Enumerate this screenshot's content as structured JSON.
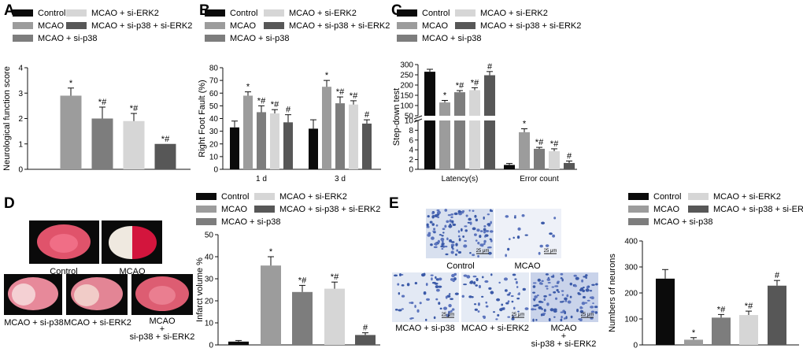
{
  "figure": {
    "panel_letters": [
      "A",
      "B",
      "C",
      "D",
      "E"
    ],
    "groups": [
      "Control",
      "MCAO",
      "MCAO + si-p38",
      "MCAO + si-ERK2",
      "MCAO + si-p38 + si-ERK2"
    ],
    "colors": {
      "control": "#0b0b0b",
      "mcao": "#9c9c9c",
      "si_p38": "#7d7d7d",
      "si_erk2": "#d6d6d6",
      "si_p38_erk2": "#575757"
    },
    "legend_layout": [
      [
        {
          "group": 0,
          "color": "control"
        },
        {
          "group": 3,
          "color": "si_erk2"
        }
      ],
      [
        {
          "group": 1,
          "color": "mcao"
        },
        {
          "group": 4,
          "color": "si_p38_erk2"
        }
      ],
      [
        {
          "group": 2,
          "color": "si_p38"
        }
      ]
    ]
  },
  "chart_data": [
    {
      "panel": "A",
      "type": "bar",
      "title": "",
      "xlabel": "",
      "ylabel": "Neurological function score",
      "ylim": [
        0,
        4
      ],
      "yticks": [
        0,
        1,
        2,
        3,
        4
      ],
      "categories": [
        "MCAO",
        "MCAO + si-p38",
        "MCAO + si-ERK2",
        "MCAO + si-p38 + si-ERK2"
      ],
      "values": [
        2.9,
        2.0,
        1.9,
        1.0
      ],
      "errors": [
        0.3,
        0.45,
        0.3,
        0.0
      ],
      "annotations": [
        "*",
        "*#",
        "*#",
        "*#"
      ],
      "colors": [
        "mcao",
        "si_p38",
        "si_erk2",
        "si_p38_erk2"
      ]
    },
    {
      "panel": "B",
      "type": "bar",
      "title": "",
      "xlabel": "",
      "ylabel": "Right Foot Fault (%)",
      "ylim": [
        0,
        80
      ],
      "yticks": [
        0,
        10,
        20,
        30,
        40,
        50,
        60,
        70,
        80
      ],
      "categories": [
        "1 d",
        "3 d"
      ],
      "series": [
        {
          "name": "Control",
          "color": "control",
          "values": [
            33,
            32
          ],
          "errors": [
            5,
            7
          ],
          "annotations": [
            "",
            ""
          ]
        },
        {
          "name": "MCAO",
          "color": "mcao",
          "values": [
            58,
            65
          ],
          "errors": [
            3,
            5
          ],
          "annotations": [
            "*",
            "*"
          ]
        },
        {
          "name": "MCAO + si-p38",
          "color": "si_p38",
          "values": [
            45,
            52
          ],
          "errors": [
            5,
            5
          ],
          "annotations": [
            "*#",
            "*#"
          ]
        },
        {
          "name": "MCAO + si-ERK2",
          "color": "si_erk2",
          "values": [
            44,
            51
          ],
          "errors": [
            3,
            3
          ],
          "annotations": [
            "*#",
            "*#"
          ]
        },
        {
          "name": "MCAO + si-p38 + si-ERK2",
          "color": "si_p38_erk2",
          "values": [
            37,
            36
          ],
          "errors": [
            6,
            3
          ],
          "annotations": [
            "#",
            "#"
          ]
        }
      ]
    },
    {
      "panel": "C",
      "type": "bar",
      "title": "",
      "xlabel": "",
      "ylabel": "Step-down test",
      "axis_break": true,
      "upper_axis": {
        "range": [
          50,
          300
        ],
        "ticks": [
          50,
          100,
          150,
          200,
          250,
          300
        ]
      },
      "lower_axis": {
        "range": [
          0,
          10
        ],
        "ticks": [
          0,
          2,
          4,
          6,
          8,
          10
        ]
      },
      "categories": [
        "Latency(s)",
        "Error count"
      ],
      "series": [
        {
          "name": "Control",
          "color": "control",
          "values": [
            265,
            0.9
          ],
          "errors": [
            12,
            0.3
          ],
          "annotations": [
            "",
            ""
          ]
        },
        {
          "name": "MCAO",
          "color": "mcao",
          "values": [
            115,
            7.6
          ],
          "errors": [
            10,
            0.7
          ],
          "annotations": [
            "*",
            "*"
          ]
        },
        {
          "name": "MCAO + si-p38",
          "color": "si_p38",
          "values": [
            165,
            4.2
          ],
          "errors": [
            8,
            0.3
          ],
          "annotations": [
            "*#",
            "*#"
          ]
        },
        {
          "name": "MCAO + si-ERK2",
          "color": "si_erk2",
          "values": [
            175,
            3.7
          ],
          "errors": [
            12,
            0.5
          ],
          "annotations": [
            "*#",
            "*#"
          ]
        },
        {
          "name": "MCAO + si-p38 + si-ERK2",
          "color": "si_p38_erk2",
          "values": [
            248,
            1.3
          ],
          "errors": [
            18,
            0.4
          ],
          "annotations": [
            "#",
            "#"
          ]
        }
      ]
    },
    {
      "panel": "D",
      "type": "bar",
      "title": "",
      "xlabel": "",
      "ylabel": "Infarct volume %",
      "ylim": [
        0,
        50
      ],
      "yticks": [
        0,
        10,
        20,
        30,
        40,
        50
      ],
      "categories": [
        "Control",
        "MCAO",
        "MCAO + si-p38",
        "MCAO + si-ERK2",
        "MCAO + si-p38 + si-ERK2"
      ],
      "values": [
        1.5,
        36,
        24,
        25.5,
        4.5
      ],
      "errors": [
        0.5,
        4,
        3,
        3,
        1
      ],
      "annotations": [
        "",
        "*",
        "*#",
        "*#",
        "#"
      ],
      "colors": [
        "control",
        "mcao",
        "si_p38",
        "si_erk2",
        "si_p38_erk2"
      ]
    },
    {
      "panel": "E",
      "type": "bar",
      "title": "",
      "xlabel": "",
      "ylabel": "Numbers of neurons",
      "ylim": [
        0,
        400
      ],
      "yticks": [
        0,
        100,
        200,
        300,
        400
      ],
      "categories": [
        "Control",
        "MCAO",
        "MCAO + si-p38",
        "MCAO + si-ERK2",
        "MCAO + si-p38 + si-ERK2"
      ],
      "values": [
        255,
        20,
        105,
        115,
        228
      ],
      "errors": [
        35,
        8,
        12,
        15,
        20
      ],
      "annotations": [
        "",
        "*",
        "*#",
        "*#",
        "#"
      ],
      "colors": [
        "control",
        "mcao",
        "si_p38",
        "si_erk2",
        "si_p38_erk2"
      ]
    }
  ],
  "photos": {
    "D": {
      "labels": [
        "Control",
        "MCAO",
        "MCAO + si-p38",
        "MCAO + si-ERK2",
        "MCAO",
        "+",
        "si-p38 + si-ERK2"
      ]
    },
    "E": {
      "labels": [
        "Control",
        "MCAO",
        "MCAO + si-p38",
        "MCAO + si-ERK2",
        "MCAO",
        "+",
        "si-p38 + si-ERK2"
      ],
      "scale_bar": "25 μm"
    }
  }
}
